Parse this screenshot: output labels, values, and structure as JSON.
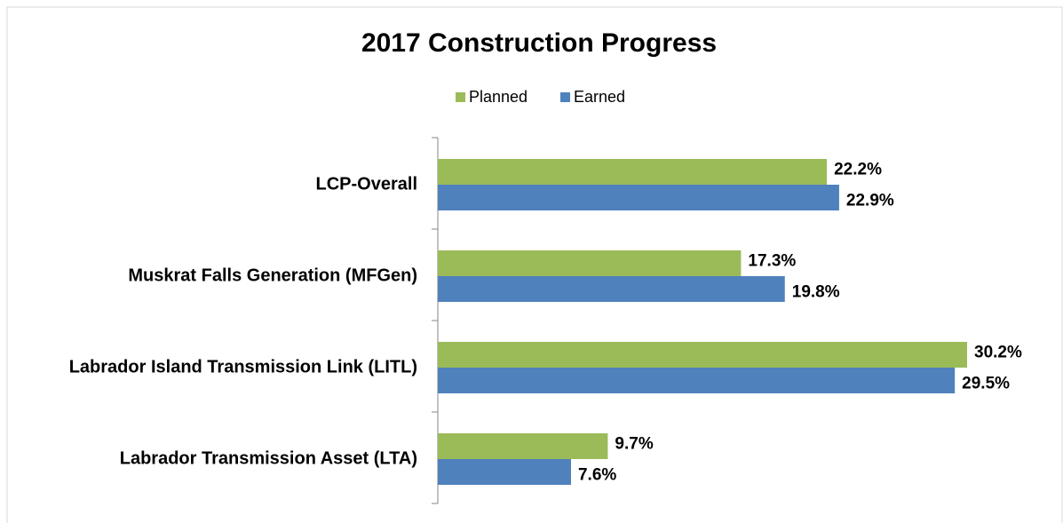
{
  "chart_data": {
    "type": "hbar",
    "title": "2017 Construction Progress",
    "categories": [
      "LCP-Overall",
      "Muskrat Falls Generation (MFGen)",
      "Labrador Island Transmission Link (LITL)",
      "Labrador Transmission Asset (LTA)"
    ],
    "series": [
      {
        "name": "Planned",
        "color": "#9bbb59",
        "values": [
          22.2,
          17.3,
          30.2,
          9.7
        ],
        "value_labels": [
          "22.2%",
          "17.3%",
          "30.2%",
          "9.7%"
        ]
      },
      {
        "name": "Earned",
        "color": "#4f81bd",
        "values": [
          22.9,
          19.8,
          29.5,
          7.6
        ],
        "value_labels": [
          "22.9%",
          "19.8%",
          "29.5%",
          "7.6%"
        ]
      }
    ],
    "legend": "top"
  }
}
